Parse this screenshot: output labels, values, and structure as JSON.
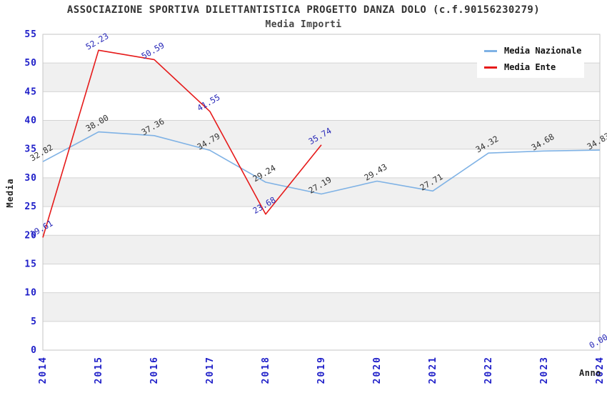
{
  "header": {
    "title": "ASSOCIAZIONE SPORTIVA DILETTANTISTICA PROGETTO DANZA DOLO (c.f.90156230279)",
    "subtitle": "Media Importi"
  },
  "chart_data": {
    "type": "line",
    "title": "ASSOCIAZIONE SPORTIVA DILETTANTISTICA PROGETTO DANZA DOLO (c.f.90156230279)",
    "subtitle": "Media Importi",
    "xlabel": "Anno",
    "ylabel": "Media",
    "x": [
      "2014",
      "2015",
      "2016",
      "2017",
      "2018",
      "2019",
      "2020",
      "2021",
      "2022",
      "2023",
      "2024"
    ],
    "series": [
      {
        "name": "Media Nazionale",
        "color": "#7FB2E5",
        "label_color": "#333333",
        "values": [
          32.82,
          38.0,
          37.36,
          34.79,
          29.24,
          27.19,
          29.43,
          27.71,
          34.32,
          34.68,
          34.83
        ]
      },
      {
        "name": "Media Ente",
        "color": "#E61A1A",
        "label_color": "#2828B8",
        "values": [
          19.61,
          52.23,
          50.59,
          41.55,
          23.68,
          35.74,
          null,
          null,
          null,
          null,
          0.0
        ]
      }
    ],
    "ylim": [
      0,
      55
    ],
    "ytick_step": 5,
    "grid": true,
    "legend_position": "top-right",
    "styles": {
      "band_fill": "#F0F0F0",
      "grid_color": "#D4D4D4",
      "border_color": "#C6C6C6",
      "tick_color": "#1E1EC8",
      "axis_title_color": "#222222",
      "background": "#FFFFFF"
    }
  }
}
